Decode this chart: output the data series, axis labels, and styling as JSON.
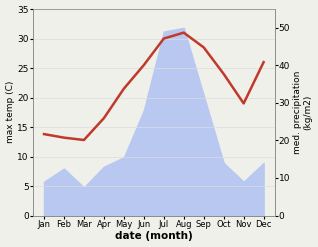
{
  "months": [
    "Jan",
    "Feb",
    "Mar",
    "Apr",
    "May",
    "Jun",
    "Jul",
    "Aug",
    "Sep",
    "Oct",
    "Nov",
    "Dec"
  ],
  "max_temp": [
    13.8,
    13.2,
    12.8,
    16.5,
    21.5,
    25.5,
    30.0,
    31.0,
    28.5,
    24.0,
    19.0,
    26.0
  ],
  "precipitation": [
    9.0,
    12.5,
    7.5,
    13.0,
    15.5,
    28.0,
    49.0,
    50.0,
    32.0,
    14.0,
    9.0,
    14.0
  ],
  "temp_color": "#c0392b",
  "precip_fill_color": "#b8c8f0",
  "ylabel_left": "max temp (C)",
  "ylabel_right": "med. precipitation\n(kg/m2)",
  "xlabel": "date (month)",
  "ylim_left": [
    0,
    35
  ],
  "ylim_right": [
    0,
    55
  ],
  "yticks_left": [
    0,
    5,
    10,
    15,
    20,
    25,
    30,
    35
  ],
  "yticks_right": [
    0,
    10,
    20,
    30,
    40,
    50
  ],
  "bg_color": "#f0f0eb",
  "plot_bg_color": "#ffffff",
  "temp_linewidth": 1.8
}
